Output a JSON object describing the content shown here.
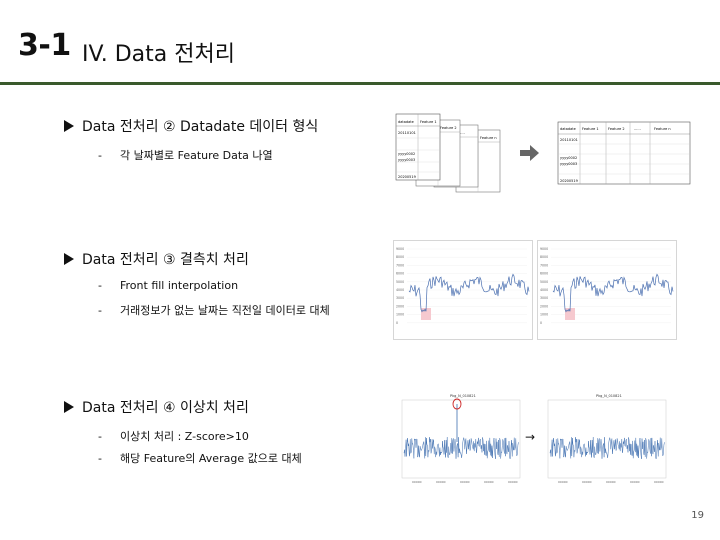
{
  "header": {
    "section_number": "3-1",
    "title": "IV. Data 전처리"
  },
  "sections": [
    {
      "heading": "Data 전처리 ② Datadate 데이터 형식",
      "items": [
        "각 날짜별로 Feature Data 나열"
      ]
    },
    {
      "heading": "Data 전처리 ③ 결측치 처리",
      "items": [
        "Front fill interpolation",
        "거래정보가 없는 날짜는 직전일 데이터로 대체"
      ]
    },
    {
      "heading": "Data 전처리 ④ 이상치 처리",
      "items": [
        "이상치 처리 : Z-score>10",
        "해당 Feature의 Average 값으로 대체"
      ]
    }
  ],
  "figure1": {
    "stack_headers": [
      "datadate",
      "Feature 1",
      "Feature 2",
      "......",
      "Feature n"
    ],
    "stack_rows": [
      "20110101",
      "yyyy0002",
      "yyyy0003",
      "20200519"
    ],
    "table_headers": [
      "datadate",
      "Feature 1",
      "Feature 2",
      "......",
      "Feature n"
    ],
    "table_rows": [
      "20110101",
      "yyyy0002",
      "yyyy0003",
      "20200519"
    ],
    "arrow_color": "#666666"
  },
  "figure2": {
    "y_ticks": [
      "9000",
      "8000",
      "7000",
      "6000",
      "5000",
      "4000",
      "3000",
      "2000",
      "1000",
      "0"
    ],
    "line_color": "#4a6fb0",
    "highlight_color": "#f6c9cf"
  },
  "figure3": {
    "plot_title_left": "Pkg_N_010821",
    "plot_title_right": "Pkg_N_010821",
    "x_ticks": [
      "00000",
      "00000",
      "00000",
      "00000",
      "00000"
    ],
    "arrow": "→",
    "outlier_marker_color": "#cc2222"
  },
  "page_number": "19"
}
